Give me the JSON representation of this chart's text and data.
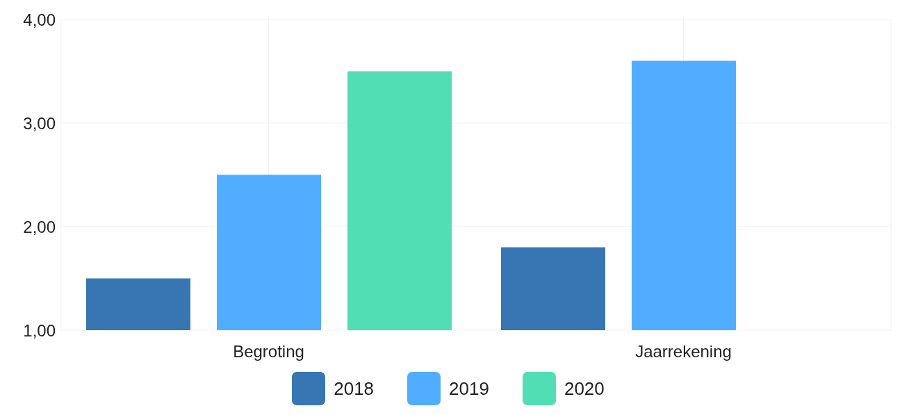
{
  "chart_data": {
    "type": "bar",
    "categories": [
      "Begroting",
      "Jaarrekening"
    ],
    "series": [
      {
        "name": "2018",
        "color": "#3776b2",
        "values": [
          1.5,
          1.8
        ]
      },
      {
        "name": "2019",
        "color": "#50adff",
        "values": [
          2.5,
          3.6
        ]
      },
      {
        "name": "2020",
        "color": "#52deb4",
        "values": [
          3.5,
          null
        ]
      }
    ],
    "ylim": [
      1,
      4
    ],
    "yticks": [
      {
        "value": 1,
        "label": "1,00"
      },
      {
        "value": 2,
        "label": "2,00"
      },
      {
        "value": 3,
        "label": "3,00"
      },
      {
        "value": 4,
        "label": "4,00"
      }
    ],
    "grid": true,
    "legend": "bottom"
  }
}
